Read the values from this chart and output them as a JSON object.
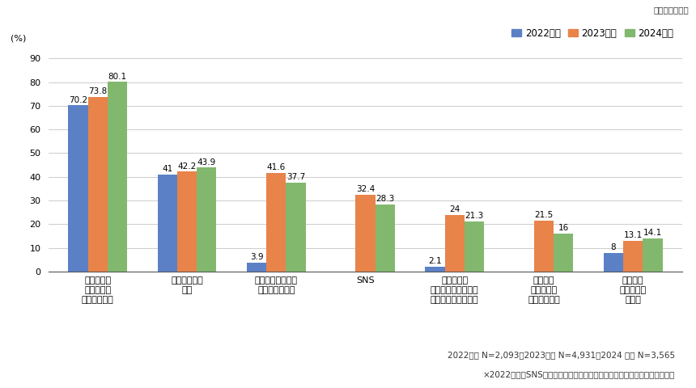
{
  "categories": [
    "母、叔母、\n祖母などの\n同性の保護者",
    "学校の友人・\n知人",
    "保健授業の先生・\n保健室の先生ら",
    "SNS",
    "学校の先生\n（保健授業の先生、\n保健室の先生以外）",
    "ナプキン\nメーカーの\nホームページ",
    "インター\nネット上の\n掲示板"
  ],
  "series": {
    "2022年度": [
      70.2,
      41.0,
      3.9,
      null,
      2.1,
      null,
      8.0
    ],
    "2023年度": [
      73.8,
      42.2,
      41.6,
      32.4,
      24.0,
      21.5,
      13.1
    ],
    "2024年度": [
      80.1,
      43.9,
      37.7,
      28.3,
      21.3,
      16.0,
      14.1
    ]
  },
  "colors": {
    "2022年度": "#5B80C5",
    "2023年度": "#E8834A",
    "2024年度": "#82B86E"
  },
  "ylim": [
    0,
    95
  ],
  "yticks": [
    0,
    10,
    20,
    30,
    40,
    50,
    60,
    70,
    80,
    90
  ],
  "ylabel": "(%)",
  "title_note": "（複数回答可）",
  "note": "×2022年は「SNS」「ナプキンメーカーのホームページ」の標準選択肢なし",
  "footnote": "2022年度 N=2,093　2023年度 N=4,931　2024 年度 N=3,565",
  "bar_width": 0.22,
  "label_fontsize": 7.5,
  "tick_fontsize": 8,
  "legend_fontsize": 8.5,
  "note_fontsize": 7.5
}
